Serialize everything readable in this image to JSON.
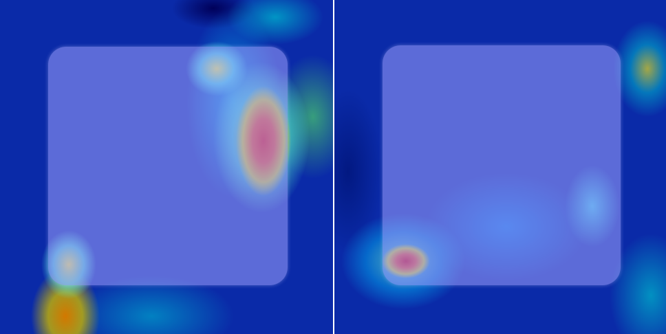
{
  "panels": [
    {
      "id": "left",
      "heat_colors": {
        "background": "#0a2aa8",
        "hotspot": "#dc1414"
      }
    },
    {
      "id": "right",
      "heat_colors": {
        "background": "#0a2aa8",
        "hotspot": "#c80014"
      }
    }
  ]
}
